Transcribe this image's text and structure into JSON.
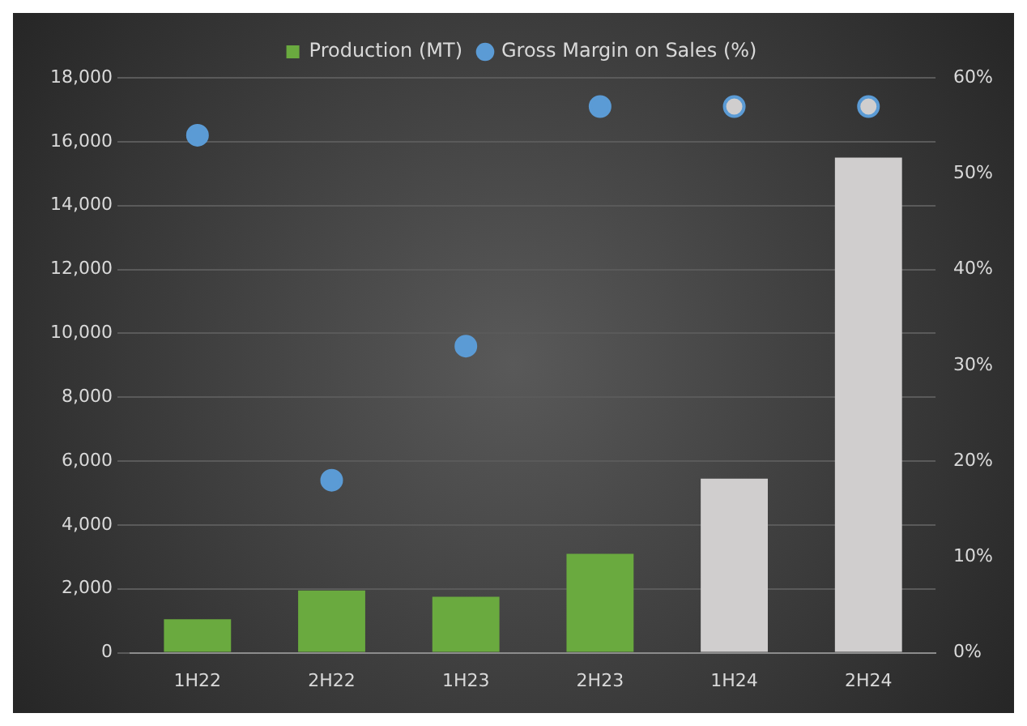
{
  "chart_data": {
    "type": "bar",
    "categories": [
      "1H22",
      "2H22",
      "1H23",
      "2H23",
      "1H24",
      "2H24"
    ],
    "series": [
      {
        "name": "Production (MT)",
        "color": "#6aaa3f",
        "colors": [
          "#6aaa3f",
          "#6aaa3f",
          "#6aaa3f",
          "#6aaa3f",
          "#d0cece",
          "#d0cece"
        ],
        "values": [
          1050,
          1950,
          1750,
          3100,
          5450,
          15500
        ]
      },
      {
        "name": "Gross Margin on Sales (%)",
        "type": "scatter",
        "axis": "y2",
        "color": "#5b9bd5",
        "colors": [
          "#5b9bd5",
          "#5b9bd5",
          "#5b9bd5",
          "#5b9bd5",
          "#d0cece",
          "#d0cece"
        ],
        "values": [
          54,
          18,
          32,
          57,
          57,
          57
        ]
      }
    ],
    "ylim": [
      0,
      18000
    ],
    "yticks": [
      0,
      {
        "value": 2000,
        "label": "2,000"
      },
      {
        "value": 4000,
        "label": "4,000"
      },
      {
        "value": 6000,
        "label": "6,000"
      },
      {
        "value": 8000,
        "label": "8,000"
      },
      {
        "value": 10000,
        "label": "10,000"
      },
      {
        "value": 12000,
        "label": "12,000"
      },
      {
        "value": 14000,
        "label": "14,000"
      },
      {
        "value": 16000,
        "label": "16,000"
      },
      {
        "value": 18000,
        "label": "18,000"
      }
    ],
    "y2lim": [
      0,
      60
    ],
    "y2ticks": [
      {
        "value": 0,
        "label": "0%"
      },
      {
        "value": 10,
        "label": "10%"
      },
      {
        "value": 20,
        "label": "20%"
      },
      {
        "value": 30,
        "label": "30%"
      },
      {
        "value": 40,
        "label": "40%"
      },
      {
        "value": 50,
        "label": "50%"
      },
      {
        "value": 60,
        "label": "60%"
      }
    ],
    "grid": "y",
    "legend": "top",
    "marker": "circle"
  }
}
